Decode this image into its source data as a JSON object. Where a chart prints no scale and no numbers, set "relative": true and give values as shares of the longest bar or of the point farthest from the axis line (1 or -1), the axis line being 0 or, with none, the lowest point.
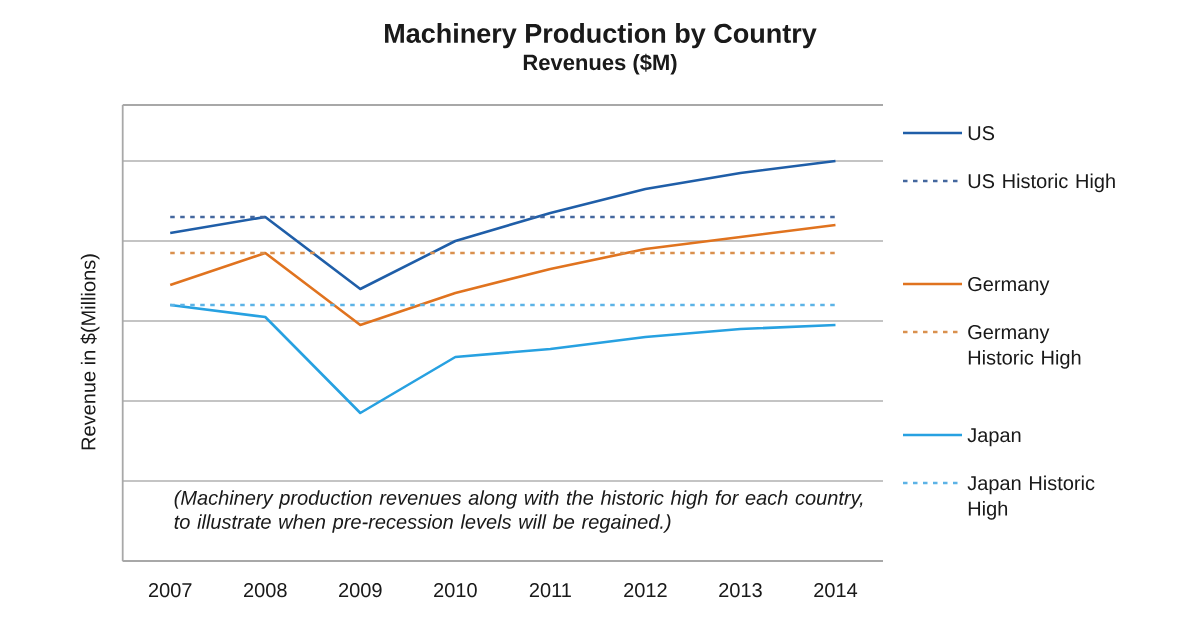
{
  "chart_data": {
    "type": "line",
    "title": "Machinery Production by Country",
    "subtitle": "Revenues ($M)",
    "ylabel": "Revenue in $(Millions)",
    "annotations": [
      "(Machinery production revenues along with the historic high for each country, to illustrate when pre-recession levels will be regained.)"
    ],
    "categories": [
      "2007",
      "2008",
      "2009",
      "2010",
      "2011",
      "2012",
      "2013",
      "2014"
    ],
    "relative": true,
    "grid": "y",
    "legend": "right",
    "marker": "none",
    "series": [
      {
        "name": "US",
        "color": "#1f5ea8",
        "line_style": "solid",
        "values": [
          0.82,
          0.86,
          0.68,
          0.8,
          0.87,
          0.93,
          0.97,
          1
        ]
      },
      {
        "name": "US Historic High",
        "color": "#44679e",
        "line_style": "dashed",
        "values": [
          0.86,
          0.86,
          0.86,
          0.86,
          0.86,
          0.86,
          0.86,
          0.86
        ]
      },
      {
        "name": "Germany",
        "color": "#e0731f",
        "line_style": "solid",
        "values": [
          0.69,
          0.77,
          0.59,
          0.67,
          0.73,
          0.78,
          0.81,
          0.84
        ]
      },
      {
        "name": "Germany Historic High",
        "color": "#d9904e",
        "line_style": "dashed",
        "values": [
          0.77,
          0.77,
          0.77,
          0.77,
          0.77,
          0.77,
          0.77,
          0.77
        ]
      },
      {
        "name": "Japan",
        "color": "#27a1e1",
        "line_style": "solid",
        "values": [
          0.64,
          0.61,
          0.37,
          0.51,
          0.53,
          0.56,
          0.58,
          0.59
        ]
      },
      {
        "name": "Japan Historic High",
        "color": "#5cb3e6",
        "line_style": "dashed",
        "values": [
          0.64,
          0.64,
          0.64,
          0.64,
          0.64,
          0.64,
          0.64,
          0.64
        ]
      }
    ]
  }
}
